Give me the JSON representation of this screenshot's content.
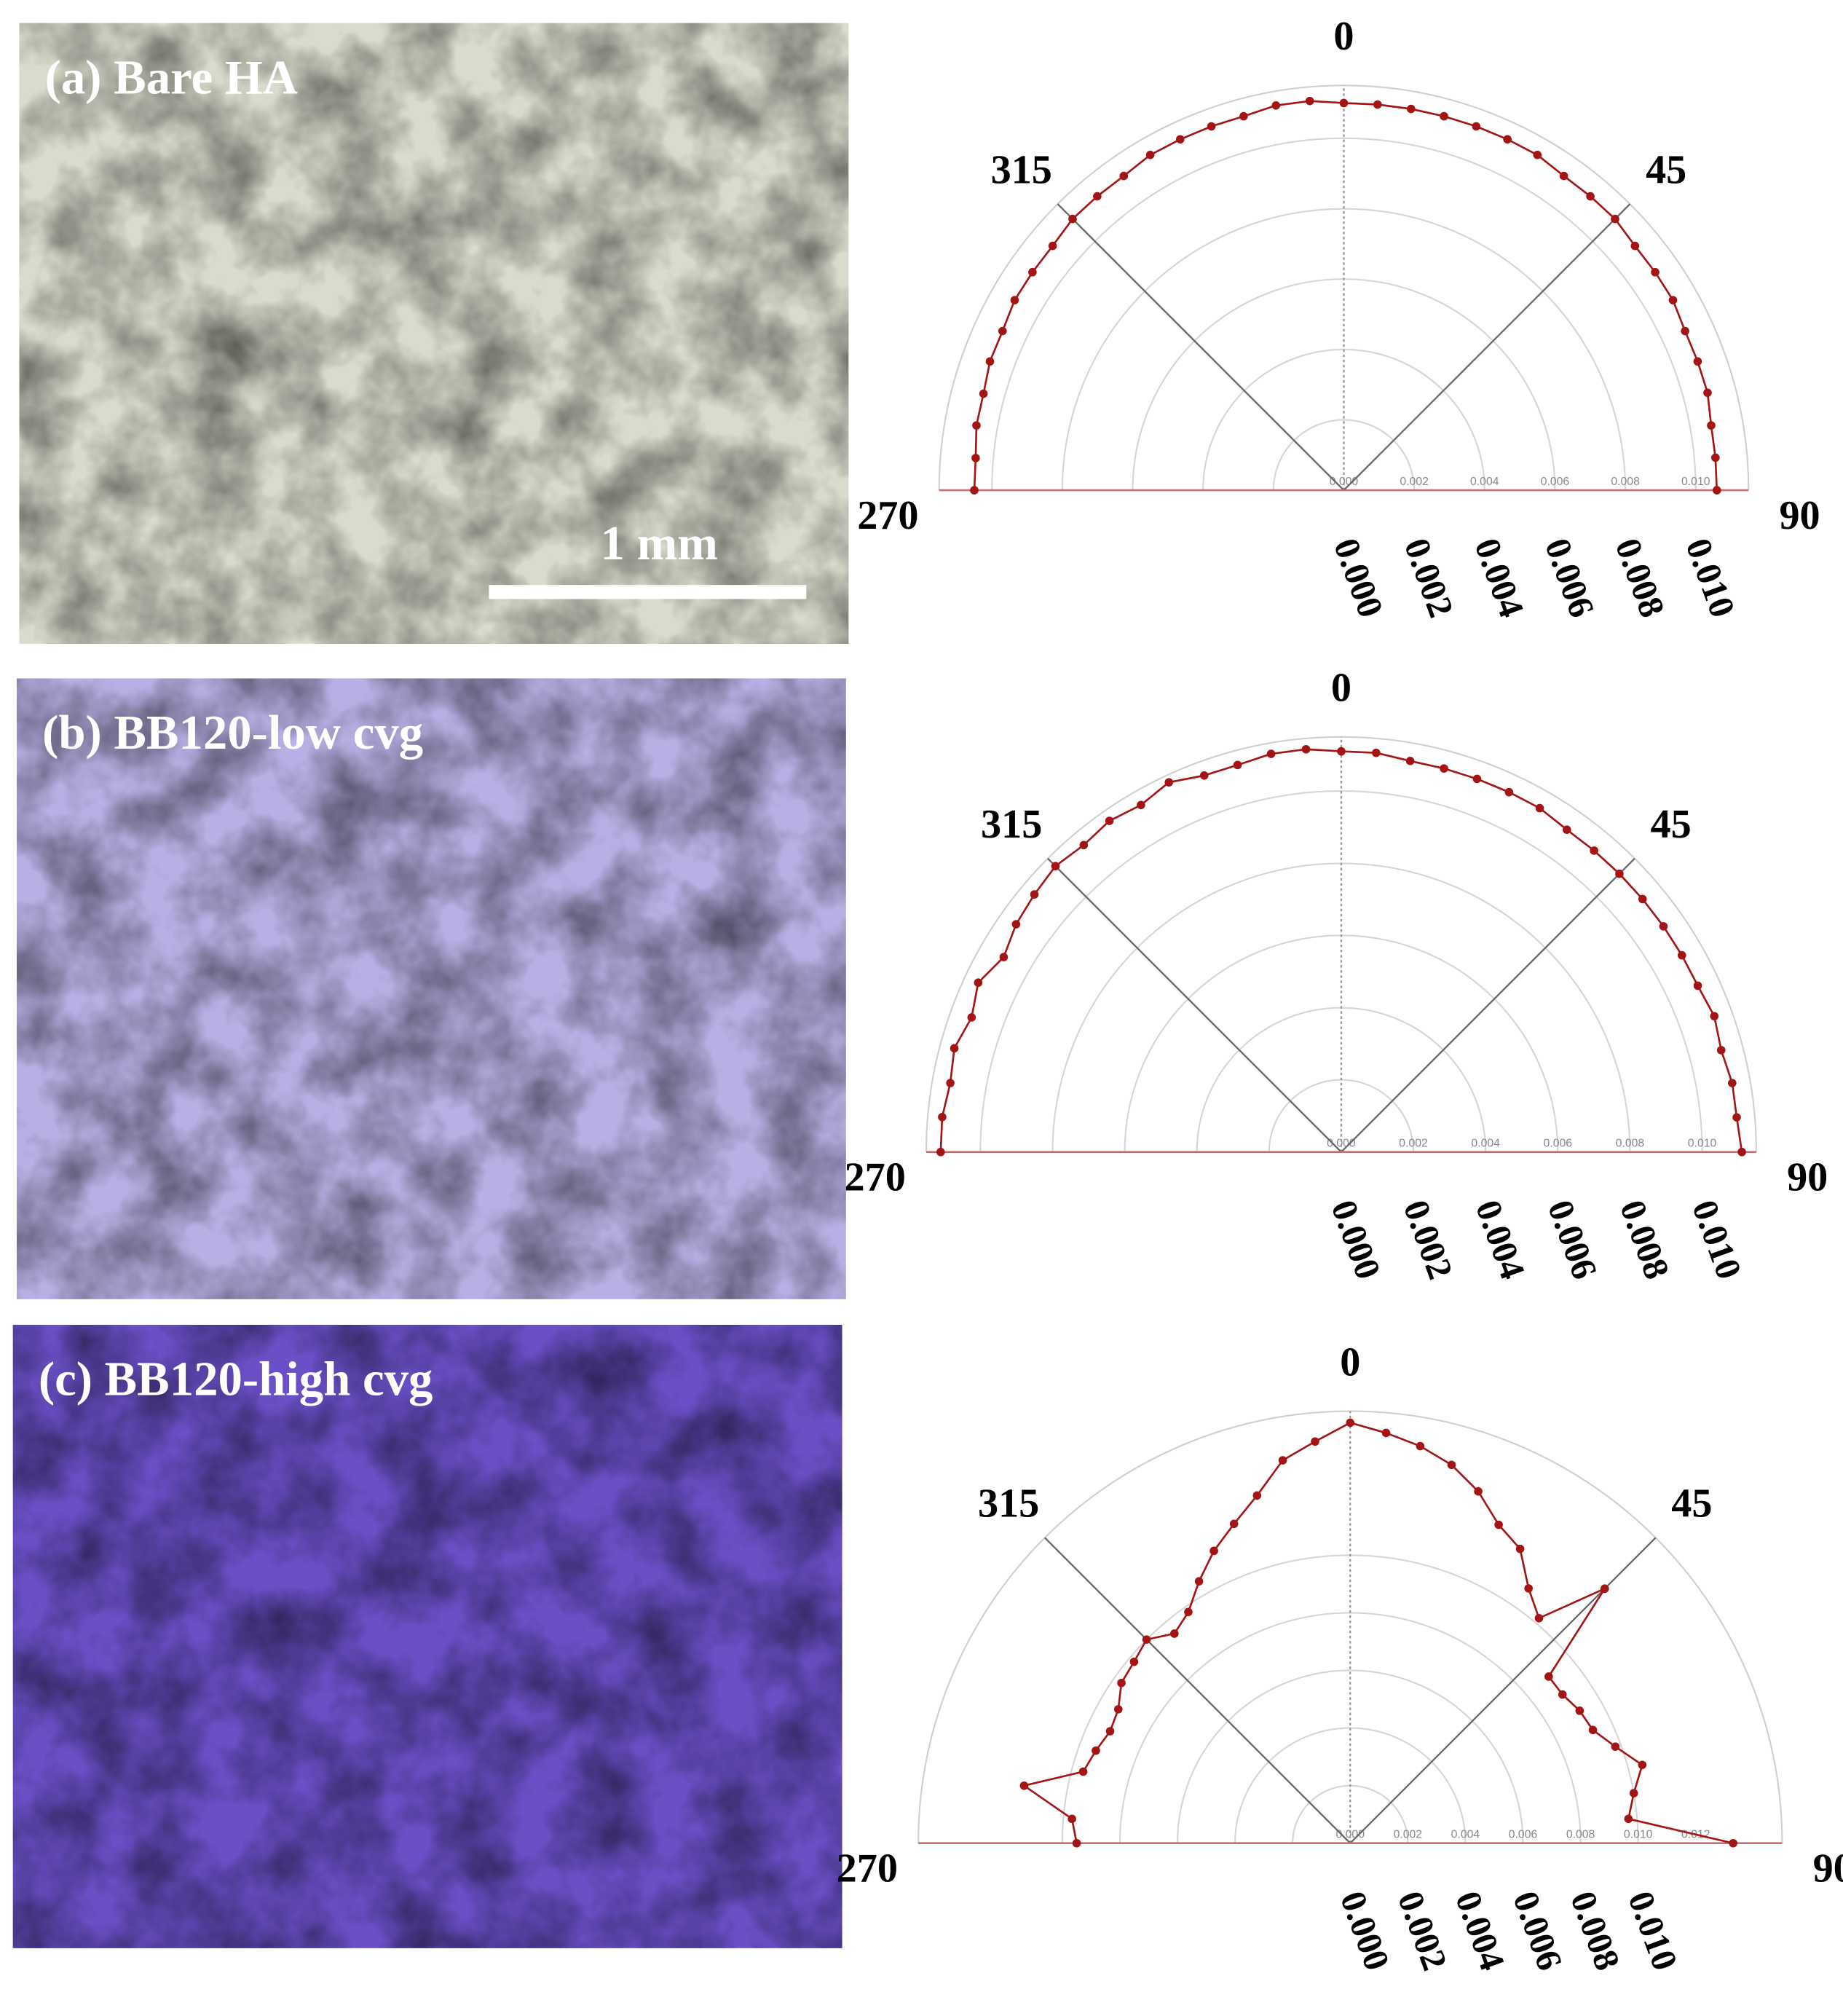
{
  "scale_bar": "1 mm",
  "chart_data": [
    {
      "type": "polar",
      "title": "(a) Bare HA",
      "color": "#a31515",
      "angles": [
        270,
        275,
        280,
        285,
        290,
        295,
        300,
        305,
        310,
        315,
        320,
        325,
        330,
        335,
        340,
        345,
        350,
        355,
        0,
        5,
        10,
        15,
        20,
        25,
        30,
        35,
        40,
        45,
        50,
        55,
        60,
        65,
        70,
        75,
        80,
        85,
        90
      ],
      "values": [
        0.0105,
        0.0105,
        0.0106,
        0.0106,
        0.0107,
        0.0107,
        0.0108,
        0.0108,
        0.0108,
        0.0109,
        0.0109,
        0.0109,
        0.011,
        0.011,
        0.011,
        0.011,
        0.0111,
        0.0111,
        0.011,
        0.011,
        0.011,
        0.011,
        0.011,
        0.011,
        0.011,
        0.0109,
        0.0109,
        0.0109,
        0.0108,
        0.0108,
        0.0108,
        0.0107,
        0.0107,
        0.0107,
        0.0106,
        0.0106,
        0.0106
      ],
      "angle_ticks": [
        0,
        45,
        90,
        270,
        315
      ],
      "rlim": [
        0,
        0.0115
      ],
      "rticks": [
        {
          "value": 0,
          "label": "0.000"
        },
        {
          "value": 0.002,
          "label": "0.002"
        },
        {
          "value": 0.004,
          "label": "0.004"
        },
        {
          "value": 0.006,
          "label": "0.006"
        },
        {
          "value": 0.008,
          "label": "0.008"
        },
        {
          "value": 0.01,
          "label": "0.010"
        }
      ],
      "inner_rticks": [
        {
          "value": 0,
          "label": "0.000"
        },
        {
          "value": 0.002,
          "label": "0.002"
        },
        {
          "value": 0.004,
          "label": "0.004"
        },
        {
          "value": 0.006,
          "label": "0.006"
        },
        {
          "value": 0.008,
          "label": "0.008"
        },
        {
          "value": 0.01,
          "label": "0.010"
        }
      ]
    },
    {
      "type": "polar",
      "title": "(b) BB120-low cvg",
      "color": "#a31515",
      "angles": [
        270,
        275,
        280,
        285,
        290,
        295,
        300,
        305,
        310,
        315,
        320,
        325,
        330,
        335,
        340,
        345,
        350,
        355,
        0,
        5,
        10,
        15,
        20,
        25,
        30,
        35,
        40,
        45,
        50,
        55,
        60,
        65,
        70,
        75,
        80,
        85,
        90
      ],
      "values": [
        0.0111,
        0.0111,
        0.011,
        0.0111,
        0.0109,
        0.0111,
        0.0108,
        0.011,
        0.0111,
        0.0112,
        0.0111,
        0.0112,
        0.0111,
        0.0113,
        0.0111,
        0.0111,
        0.0112,
        0.0112,
        0.0111,
        0.0111,
        0.011,
        0.011,
        0.011,
        0.011,
        0.011,
        0.0109,
        0.0109,
        0.0109,
        0.0109,
        0.0109,
        0.0109,
        0.0109,
        0.011,
        0.0109,
        0.011,
        0.011,
        0.0111
      ],
      "angle_ticks": [
        0,
        45,
        90,
        270,
        315
      ],
      "rlim": [
        0,
        0.0115
      ],
      "rticks": [
        {
          "value": 0,
          "label": "0.000"
        },
        {
          "value": 0.002,
          "label": "0.002"
        },
        {
          "value": 0.004,
          "label": "0.004"
        },
        {
          "value": 0.006,
          "label": "0.006"
        },
        {
          "value": 0.008,
          "label": "0.008"
        },
        {
          "value": 0.01,
          "label": "0.010"
        }
      ],
      "inner_rticks": [
        {
          "value": 0,
          "label": "0.000"
        },
        {
          "value": 0.002,
          "label": "0.002"
        },
        {
          "value": 0.004,
          "label": "0.004"
        },
        {
          "value": 0.006,
          "label": "0.006"
        },
        {
          "value": 0.008,
          "label": "0.008"
        },
        {
          "value": 0.01,
          "label": "0.010"
        }
      ]
    },
    {
      "type": "polar",
      "title": "(c) BB120-high cvg",
      "color": "#a31515",
      "angles": [
        270,
        275,
        280,
        285,
        290,
        295,
        300,
        305,
        310,
        315,
        320,
        325,
        330,
        335,
        340,
        345,
        350,
        355,
        0,
        5,
        10,
        15,
        20,
        25,
        30,
        35,
        40,
        45,
        50,
        55,
        60,
        65,
        70,
        75,
        80,
        85,
        90
      ],
      "values": [
        0.0095,
        0.0097,
        0.0115,
        0.0096,
        0.0094,
        0.0092,
        0.0093,
        0.0097,
        0.0098,
        0.01,
        0.0095,
        0.0098,
        0.0105,
        0.0112,
        0.0118,
        0.0125,
        0.0135,
        0.014,
        0.0146,
        0.0143,
        0.014,
        0.0136,
        0.013,
        0.0122,
        0.0118,
        0.0108,
        0.0102,
        0.0125,
        0.009,
        0.009,
        0.0092,
        0.0093,
        0.0098,
        0.0105,
        0.01,
        0.0097,
        0.0133
      ],
      "angle_ticks": [
        0,
        45,
        90,
        270,
        315
      ],
      "rlim": [
        0,
        0.015
      ],
      "rticks": [
        {
          "value": 0,
          "label": "0.000"
        },
        {
          "value": 0.002,
          "label": "0.002"
        },
        {
          "value": 0.004,
          "label": "0.004"
        },
        {
          "value": 0.006,
          "label": "0.006"
        },
        {
          "value": 0.008,
          "label": "0.008"
        },
        {
          "value": 0.01,
          "label": "0.010"
        }
      ],
      "inner_rticks": [
        {
          "value": 0,
          "label": "0.000"
        },
        {
          "value": 0.002,
          "label": "0.002"
        },
        {
          "value": 0.004,
          "label": "0.004"
        },
        {
          "value": 0.006,
          "label": "0.006"
        },
        {
          "value": 0.008,
          "label": "0.008"
        },
        {
          "value": 0.01,
          "label": "0.010"
        },
        {
          "value": 0.012,
          "label": "0.012"
        }
      ]
    }
  ]
}
